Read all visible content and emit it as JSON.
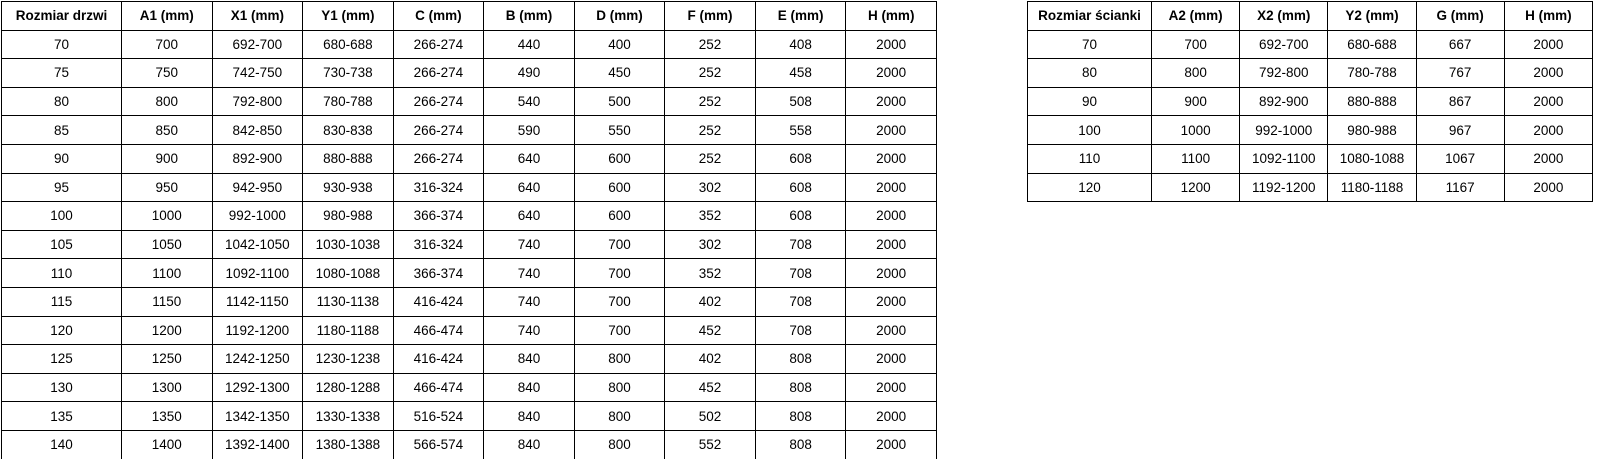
{
  "door_table": {
    "headers": [
      "Rozmiar drzwi",
      "A1 (mm)",
      "X1 (mm)",
      "Y1 (mm)",
      "C (mm)",
      "B (mm)",
      "D (mm)",
      "F (mm)",
      "E (mm)",
      "H (mm)"
    ],
    "rows": [
      [
        "70",
        "700",
        "692-700",
        "680-688",
        "266-274",
        "440",
        "400",
        "252",
        "408",
        "2000"
      ],
      [
        "75",
        "750",
        "742-750",
        "730-738",
        "266-274",
        "490",
        "450",
        "252",
        "458",
        "2000"
      ],
      [
        "80",
        "800",
        "792-800",
        "780-788",
        "266-274",
        "540",
        "500",
        "252",
        "508",
        "2000"
      ],
      [
        "85",
        "850",
        "842-850",
        "830-838",
        "266-274",
        "590",
        "550",
        "252",
        "558",
        "2000"
      ],
      [
        "90",
        "900",
        "892-900",
        "880-888",
        "266-274",
        "640",
        "600",
        "252",
        "608",
        "2000"
      ],
      [
        "95",
        "950",
        "942-950",
        "930-938",
        "316-324",
        "640",
        "600",
        "302",
        "608",
        "2000"
      ],
      [
        "100",
        "1000",
        "992-1000",
        "980-988",
        "366-374",
        "640",
        "600",
        "352",
        "608",
        "2000"
      ],
      [
        "105",
        "1050",
        "1042-1050",
        "1030-1038",
        "316-324",
        "740",
        "700",
        "302",
        "708",
        "2000"
      ],
      [
        "110",
        "1100",
        "1092-1100",
        "1080-1088",
        "366-374",
        "740",
        "700",
        "352",
        "708",
        "2000"
      ],
      [
        "115",
        "1150",
        "1142-1150",
        "1130-1138",
        "416-424",
        "740",
        "700",
        "402",
        "708",
        "2000"
      ],
      [
        "120",
        "1200",
        "1192-1200",
        "1180-1188",
        "466-474",
        "740",
        "700",
        "452",
        "708",
        "2000"
      ],
      [
        "125",
        "1250",
        "1242-1250",
        "1230-1238",
        "416-424",
        "840",
        "800",
        "402",
        "808",
        "2000"
      ],
      [
        "130",
        "1300",
        "1292-1300",
        "1280-1288",
        "466-474",
        "840",
        "800",
        "452",
        "808",
        "2000"
      ],
      [
        "135",
        "1350",
        "1342-1350",
        "1330-1338",
        "516-524",
        "840",
        "800",
        "502",
        "808",
        "2000"
      ],
      [
        "140",
        "1400",
        "1392-1400",
        "1380-1388",
        "566-574",
        "840",
        "800",
        "552",
        "808",
        "2000"
      ]
    ]
  },
  "wall_table": {
    "headers": [
      "Rozmiar ścianki",
      "A2 (mm)",
      "X2 (mm)",
      "Y2 (mm)",
      "G (mm)",
      "H (mm)"
    ],
    "rows": [
      [
        "70",
        "700",
        "692-700",
        "680-688",
        "667",
        "2000"
      ],
      [
        "80",
        "800",
        "792-800",
        "780-788",
        "767",
        "2000"
      ],
      [
        "90",
        "900",
        "892-900",
        "880-888",
        "867",
        "2000"
      ],
      [
        "100",
        "1000",
        "992-1000",
        "980-988",
        "967",
        "2000"
      ],
      [
        "110",
        "1100",
        "1092-1100",
        "1080-1088",
        "1067",
        "2000"
      ],
      [
        "120",
        "1200",
        "1192-1200",
        "1180-1188",
        "1167",
        "2000"
      ]
    ]
  },
  "colors": {
    "border": "#000000",
    "text": "#000000",
    "background": "#ffffff"
  }
}
